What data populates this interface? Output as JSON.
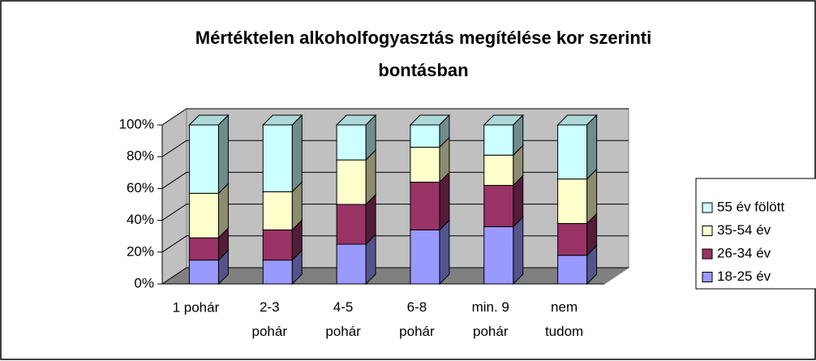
{
  "chart_data": {
    "type": "bar3d_stacked",
    "title": "Mértéktelen alkoholfogyasztás megítélése kor szerinti\nbontásban",
    "categories": [
      "1 pohár",
      "2-3\npohár",
      "4-5\npohár",
      "6-8\npohár",
      "min. 9\npohár",
      "nem\ntudom"
    ],
    "series": [
      {
        "name": "18-25 év",
        "color": "#9999ff",
        "values": [
          15,
          15,
          25,
          34,
          36,
          18
        ]
      },
      {
        "name": "26-34 év",
        "color": "#993366",
        "values": [
          14,
          19,
          25,
          30,
          26,
          20
        ]
      },
      {
        "name": "35-54 év",
        "color": "#ffffcc",
        "values": [
          28,
          24,
          28,
          22,
          19,
          28
        ]
      },
      {
        "name": "55 év fölött",
        "color": "#ccffff",
        "values": [
          43,
          42,
          22,
          14,
          19,
          34
        ]
      }
    ],
    "ylim": [
      0,
      100
    ],
    "yticks": [
      {
        "value": 0,
        "label": "0%"
      },
      {
        "value": 20,
        "label": "20%"
      },
      {
        "value": 40,
        "label": "40%"
      },
      {
        "value": 60,
        "label": "60%"
      },
      {
        "value": 80,
        "label": "80%"
      },
      {
        "value": 100,
        "label": "100%"
      }
    ],
    "grid": true,
    "legend": "right"
  }
}
